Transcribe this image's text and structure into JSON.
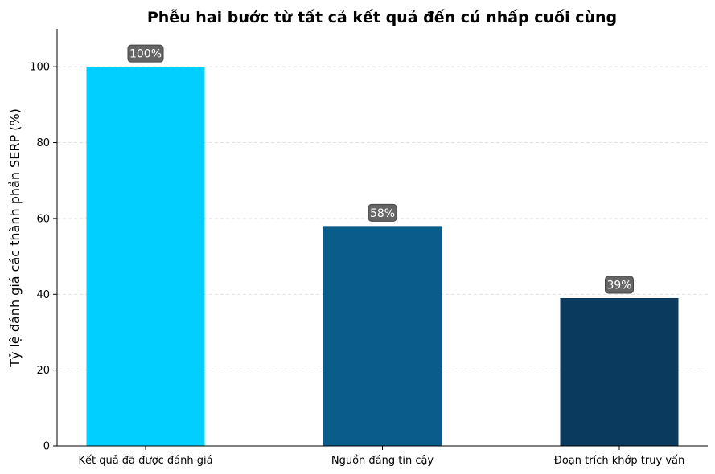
{
  "chart_data": {
    "type": "bar",
    "title": "Phễu hai bước từ tất cả kết quả đến cú nhấp cuối cùng",
    "xlabel": "",
    "ylabel": "Tỷ lệ đánh giá các thành phần SERP (%)",
    "categories": [
      "Kết quả đã được đánh giá",
      "Nguồn đáng tin cậy",
      "Đoạn trích khớp truy vấn"
    ],
    "values": [
      100,
      58,
      39
    ],
    "data_labels": [
      "100%",
      "58%",
      "39%"
    ],
    "colors": [
      "#00cfff",
      "#0a5c8a",
      "#0a3a5e"
    ],
    "ylim": [
      0,
      110
    ],
    "yticks": [
      0,
      20,
      40,
      60,
      80,
      100
    ],
    "grid": "y-dashed",
    "legend": "none"
  }
}
